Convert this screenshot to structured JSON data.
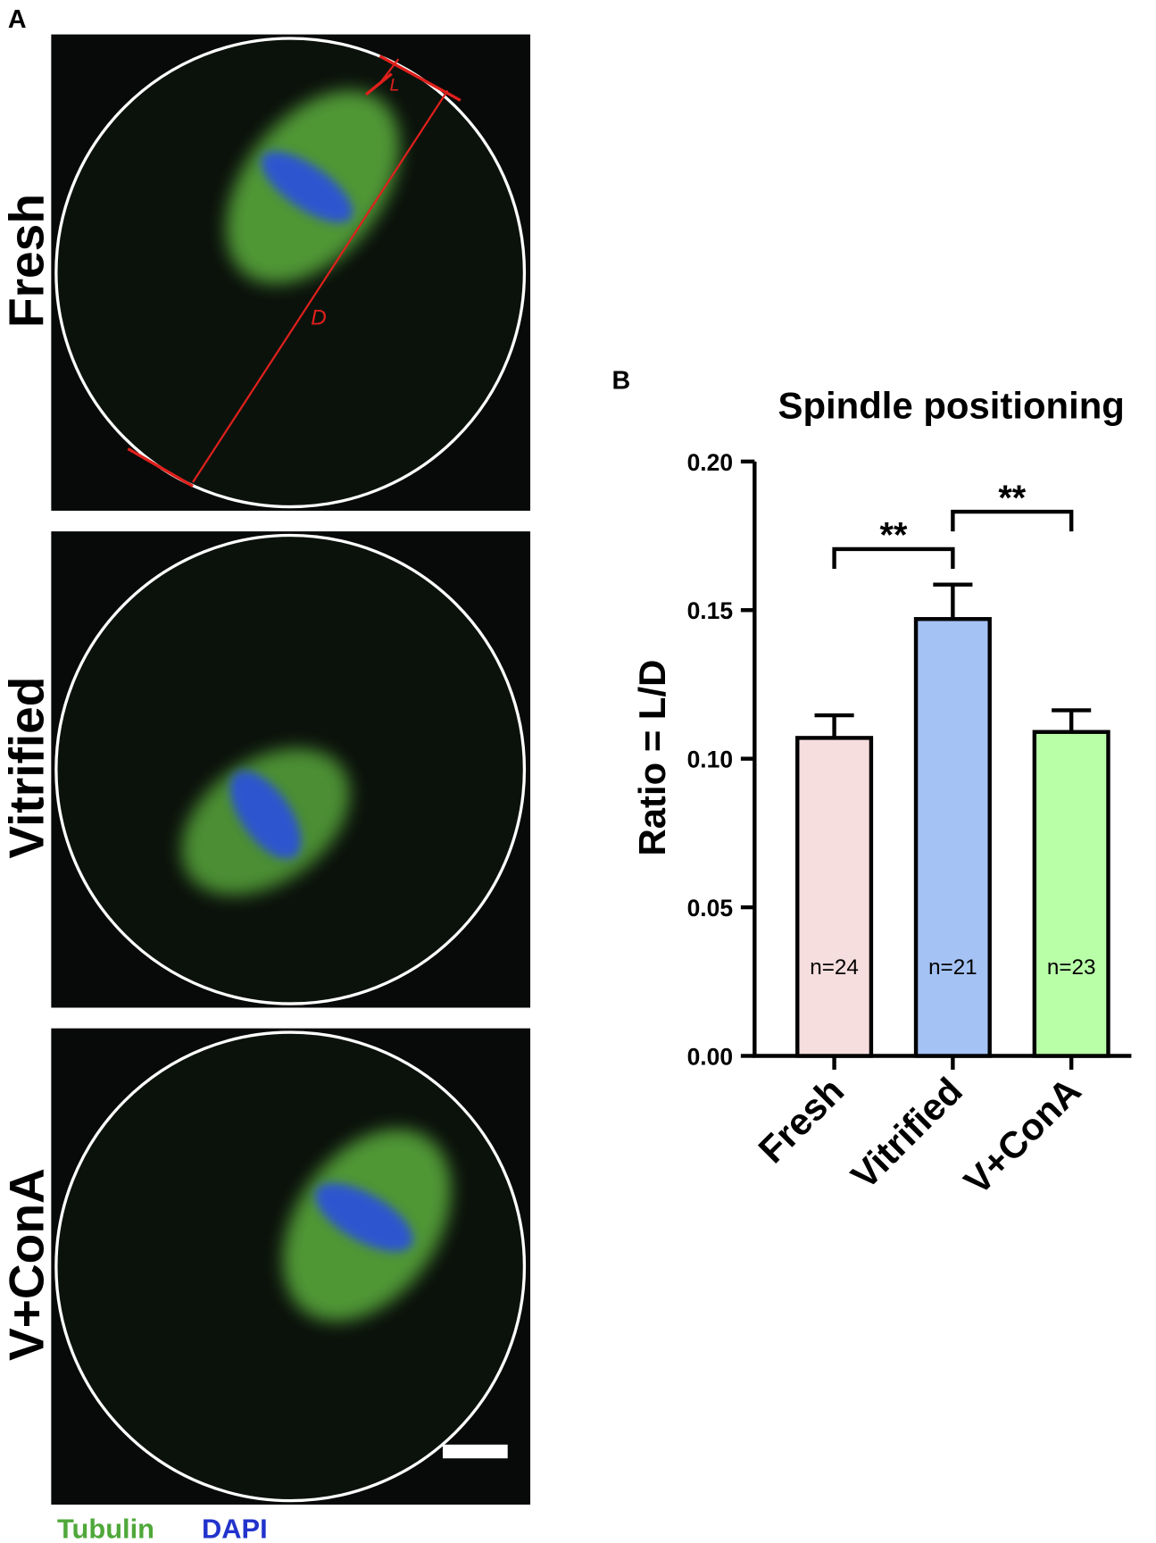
{
  "panel_a": {
    "label": "A",
    "rows": [
      "Fresh",
      "Vitrified",
      "V+ConA"
    ],
    "annotations": [
      "L",
      "D"
    ],
    "legend": [
      "Tubulin",
      "DAPI"
    ]
  },
  "chart_data": {
    "type": "bar",
    "panel_label": "B",
    "title": "Spindle positioning",
    "y_label": "Ratio = L/D",
    "categories": [
      "Fresh",
      "Vitrified",
      "V+ConA"
    ],
    "values": [
      0.107,
      0.147,
      0.109
    ],
    "errors": [
      0.0076,
      0.0116,
      0.0073
    ],
    "colors": [
      "#f5dedd",
      "#a4c2f4",
      "#b9ffa8"
    ],
    "n_labels": [
      "n=24",
      "n=21",
      "n=23"
    ],
    "significance": [
      {
        "groups": [
          0,
          1
        ],
        "label": "**"
      },
      {
        "groups": [
          1,
          2
        ],
        "label": "**"
      }
    ],
    "ylim": [
      0,
      0.2
    ],
    "yticks": [
      {
        "value": 0,
        "label": "0.00"
      },
      {
        "value": 0.05,
        "label": "0.05"
      },
      {
        "value": 0.1,
        "label": "0.10"
      },
      {
        "value": 0.15,
        "label": "0.15"
      },
      {
        "value": 0.2,
        "label": "0.20"
      }
    ]
  }
}
